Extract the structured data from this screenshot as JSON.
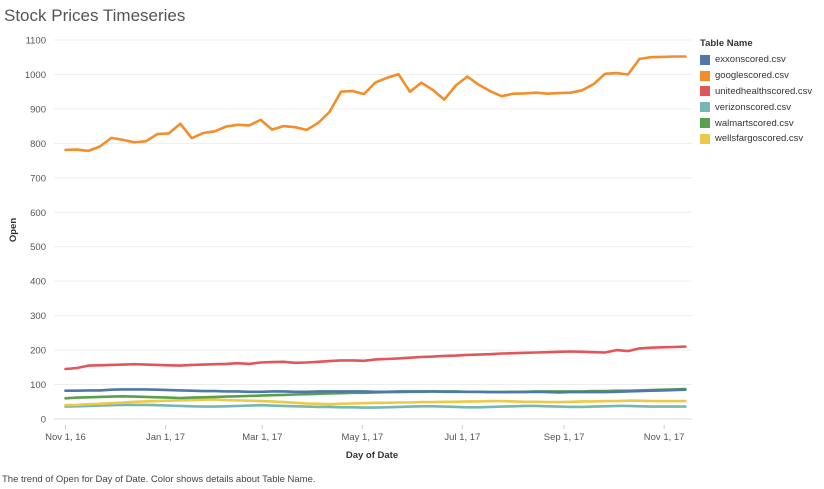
{
  "title": "Stock Prices Timeseries",
  "caption": "The trend of Open for Day of Date.  Color shows details about Table Name.",
  "legend": {
    "title": "Table Name"
  },
  "chart_data": {
    "type": "line",
    "title": "Stock Prices Timeseries",
    "xlabel": "Day of Date",
    "ylabel": "Open",
    "ylim": [
      0,
      1100
    ],
    "xlim": [
      "2016-10-25",
      "2017-11-18"
    ],
    "yticks": [
      0,
      100,
      200,
      300,
      400,
      500,
      600,
      700,
      800,
      900,
      1000,
      1100
    ],
    "xticks": [
      "2016-11-01",
      "2017-01-01",
      "2017-03-01",
      "2017-05-01",
      "2017-07-01",
      "2017-09-01",
      "2017-11-01"
    ],
    "xtick_labels": [
      "Nov 1, 16",
      "Jan 1, 17",
      "Mar 1, 17",
      "May 1, 17",
      "Jul 1, 17",
      "Sep 1, 17",
      "Nov 1, 17"
    ],
    "grid": true,
    "legend_position": "right",
    "x": [
      "2016-11-01",
      "2016-11-08",
      "2016-11-15",
      "2016-11-22",
      "2016-11-29",
      "2016-12-06",
      "2016-12-13",
      "2016-12-20",
      "2016-12-27",
      "2017-01-03",
      "2017-01-10",
      "2017-01-17",
      "2017-01-24",
      "2017-01-31",
      "2017-02-07",
      "2017-02-14",
      "2017-02-21",
      "2017-02-28",
      "2017-03-07",
      "2017-03-14",
      "2017-03-21",
      "2017-03-28",
      "2017-04-04",
      "2017-04-11",
      "2017-04-18",
      "2017-04-25",
      "2017-05-02",
      "2017-05-09",
      "2017-05-16",
      "2017-05-23",
      "2017-05-30",
      "2017-06-06",
      "2017-06-13",
      "2017-06-20",
      "2017-06-27",
      "2017-07-04",
      "2017-07-11",
      "2017-07-18",
      "2017-07-25",
      "2017-08-01",
      "2017-08-08",
      "2017-08-15",
      "2017-08-22",
      "2017-08-29",
      "2017-09-05",
      "2017-09-12",
      "2017-09-19",
      "2017-09-26",
      "2017-10-03",
      "2017-10-10",
      "2017-10-17",
      "2017-10-24",
      "2017-10-31",
      "2017-11-07",
      "2017-11-14"
    ],
    "series": [
      {
        "name": "exxonscored.csv",
        "color": "#4e79a7",
        "values": [
          82,
          82,
          83,
          83,
          85,
          86,
          86,
          86,
          85,
          84,
          83,
          82,
          81,
          81,
          80,
          80,
          79,
          79,
          80,
          80,
          79,
          79,
          80,
          80,
          80,
          80,
          80,
          79,
          79,
          80,
          80,
          80,
          80,
          79,
          79,
          79,
          79,
          78,
          78,
          78,
          78,
          79,
          78,
          77,
          78,
          78,
          78,
          78,
          79,
          80,
          81,
          82,
          83,
          84,
          85
        ]
      },
      {
        "name": "googlescored.csv",
        "color": "#f28e2b",
        "values": [
          781,
          782,
          778,
          791,
          816,
          810,
          803,
          806,
          827,
          829,
          857,
          815,
          830,
          835,
          849,
          854,
          852,
          868,
          840,
          850,
          847,
          839,
          859,
          891,
          950,
          952,
          943,
          977,
          990,
          1001,
          950,
          976,
          955,
          927,
          968,
          994,
          970,
          951,
          937,
          944,
          945,
          947,
          944,
          946,
          947,
          954,
          972,
          1002,
          1004,
          1000,
          1045,
          1050,
          1051,
          1052,
          1052
        ]
      },
      {
        "name": "unitedhealthscored.csv",
        "color": "#e15759",
        "values": [
          145,
          148,
          155,
          156,
          157,
          158,
          159,
          158,
          157,
          156,
          155,
          157,
          158,
          159,
          160,
          162,
          160,
          164,
          165,
          166,
          163,
          164,
          166,
          168,
          170,
          170,
          169,
          173,
          174,
          176,
          178,
          180,
          181,
          183,
          184,
          186,
          187,
          188,
          190,
          191,
          192,
          193,
          194,
          195,
          196,
          195,
          194,
          193,
          200,
          197,
          205,
          207,
          208,
          209,
          210
        ]
      },
      {
        "name": "verizonscored.csv",
        "color": "#76b7b2",
        "values": [
          36,
          37,
          38,
          39,
          40,
          41,
          41,
          41,
          40,
          39,
          38,
          37,
          36,
          36,
          37,
          38,
          39,
          40,
          39,
          38,
          37,
          36,
          35,
          35,
          34,
          34,
          33,
          33,
          34,
          35,
          36,
          37,
          37,
          36,
          35,
          34,
          34,
          35,
          36,
          37,
          38,
          38,
          37,
          36,
          35,
          35,
          36,
          37,
          38,
          38,
          37,
          36,
          36,
          36,
          36
        ]
      },
      {
        "name": "walmartscored.csv",
        "color": "#59a14f",
        "values": [
          60,
          62,
          63,
          64,
          65,
          66,
          65,
          64,
          63,
          62,
          61,
          62,
          63,
          64,
          65,
          66,
          67,
          68,
          69,
          70,
          71,
          72,
          73,
          74,
          75,
          76,
          76,
          77,
          78,
          78,
          79,
          79,
          80,
          80,
          80,
          79,
          79,
          78,
          78,
          79,
          79,
          80,
          80,
          80,
          80,
          80,
          81,
          81,
          82,
          82,
          83,
          84,
          85,
          86,
          87
        ]
      },
      {
        "name": "wellsfargoscored.csv",
        "color": "#edc948",
        "values": [
          40,
          41,
          43,
          44,
          46,
          48,
          50,
          51,
          52,
          53,
          54,
          55,
          56,
          57,
          55,
          54,
          53,
          52,
          51,
          49,
          47,
          45,
          44,
          43,
          44,
          45,
          46,
          47,
          47,
          48,
          48,
          49,
          49,
          50,
          50,
          51,
          51,
          52,
          52,
          51,
          50,
          50,
          49,
          49,
          50,
          51,
          51,
          52,
          52,
          53,
          53,
          52,
          52,
          52,
          52
        ]
      }
    ]
  }
}
